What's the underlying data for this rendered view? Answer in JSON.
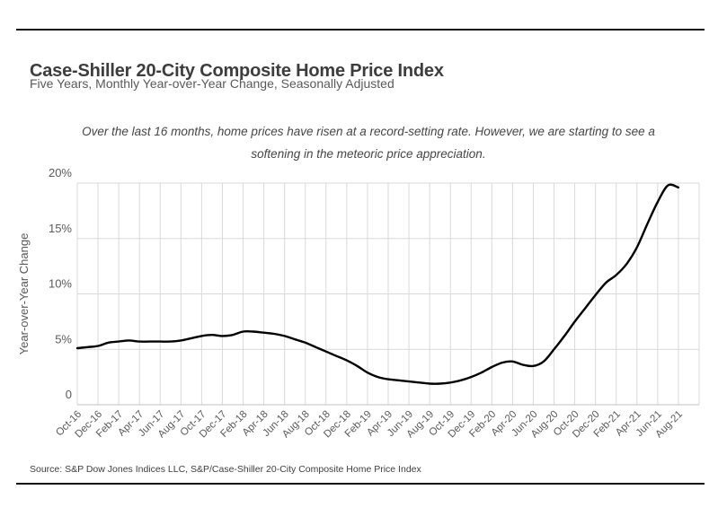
{
  "header": {
    "title": "Case-Shiller 20-City Composite Home Price Index",
    "subtitle": "Five Years, Monthly Year-over-Year Change, Seasonally Adjusted"
  },
  "annotation": {
    "line1": "Over the last 16 months, home prices have risen at a record-setting rate. However, we are starting to see a",
    "line2": "softening in the meteoric price appreciation."
  },
  "source": "Source: S&P Dow Jones Indices LLC, S&P/Case-Shiller 20-City Composite Home Price Index",
  "chart_data": {
    "type": "line",
    "title": "Case-Shiller 20-City Composite Home Price Index",
    "subtitle": "Five Years, Monthly Year-over-Year Change, Seasonally Adjusted",
    "ylabel": "Year-over-Year Change",
    "xlabel": "",
    "ylim": [
      0,
      20
    ],
    "ytick_values": [
      0,
      5,
      10,
      15,
      20
    ],
    "ytick_labels": [
      "0",
      "5%",
      "10%",
      "15%",
      "20%"
    ],
    "xtick_labels": [
      "Oct-16",
      "Dec-16",
      "Feb-17",
      "Apr-17",
      "Jun-17",
      "Aug-17",
      "Oct-17",
      "Dec-17",
      "Feb-18",
      "Apr-18",
      "Jun-18",
      "Aug-18",
      "Oct-18",
      "Dec-18",
      "Feb-19",
      "Apr-19",
      "Jun-19",
      "Aug-19",
      "Oct-19",
      "Dec-19",
      "Feb-20",
      "Apr-20",
      "Jun-20",
      "Aug-20",
      "Oct-20",
      "Dec-20",
      "Feb-21",
      "Apr-21",
      "Jun-21",
      "Aug-21"
    ],
    "x": [
      "Oct-16",
      "Nov-16",
      "Dec-16",
      "Jan-17",
      "Feb-17",
      "Mar-17",
      "Apr-17",
      "May-17",
      "Jun-17",
      "Jul-17",
      "Aug-17",
      "Sep-17",
      "Oct-17",
      "Nov-17",
      "Dec-17",
      "Jan-18",
      "Feb-18",
      "Mar-18",
      "Apr-18",
      "May-18",
      "Jun-18",
      "Jul-18",
      "Aug-18",
      "Sep-18",
      "Oct-18",
      "Nov-18",
      "Dec-18",
      "Jan-19",
      "Feb-19",
      "Mar-19",
      "Apr-19",
      "May-19",
      "Jun-19",
      "Jul-19",
      "Aug-19",
      "Sep-19",
      "Oct-19",
      "Nov-19",
      "Dec-19",
      "Jan-20",
      "Feb-20",
      "Mar-20",
      "Apr-20",
      "May-20",
      "Jun-20",
      "Jul-20",
      "Aug-20",
      "Sep-20",
      "Oct-20",
      "Nov-20",
      "Dec-20",
      "Jan-21",
      "Feb-21",
      "Mar-21",
      "Apr-21",
      "May-21",
      "Jun-21",
      "Jul-21",
      "Aug-21"
    ],
    "series": [
      {
        "name": "20-City Composite YoY % Change (SA)",
        "values": [
          5.1,
          5.2,
          5.3,
          5.6,
          5.7,
          5.8,
          5.7,
          5.7,
          5.7,
          5.7,
          5.8,
          6.0,
          6.2,
          6.3,
          6.2,
          6.3,
          6.6,
          6.6,
          6.5,
          6.4,
          6.2,
          5.9,
          5.6,
          5.2,
          4.8,
          4.4,
          4.0,
          3.5,
          2.9,
          2.5,
          2.3,
          2.2,
          2.1,
          2.0,
          1.9,
          1.9,
          2.0,
          2.2,
          2.5,
          2.9,
          3.4,
          3.8,
          3.9,
          3.6,
          3.5,
          3.9,
          5.0,
          6.2,
          7.5,
          8.7,
          9.9,
          11.0,
          11.7,
          12.7,
          14.2,
          16.3,
          18.3,
          19.8,
          19.6
        ]
      }
    ],
    "grid": true,
    "legend": "none",
    "line_color": "#000000",
    "grid_color": "#d9d9d9",
    "tick_color": "#595959"
  }
}
